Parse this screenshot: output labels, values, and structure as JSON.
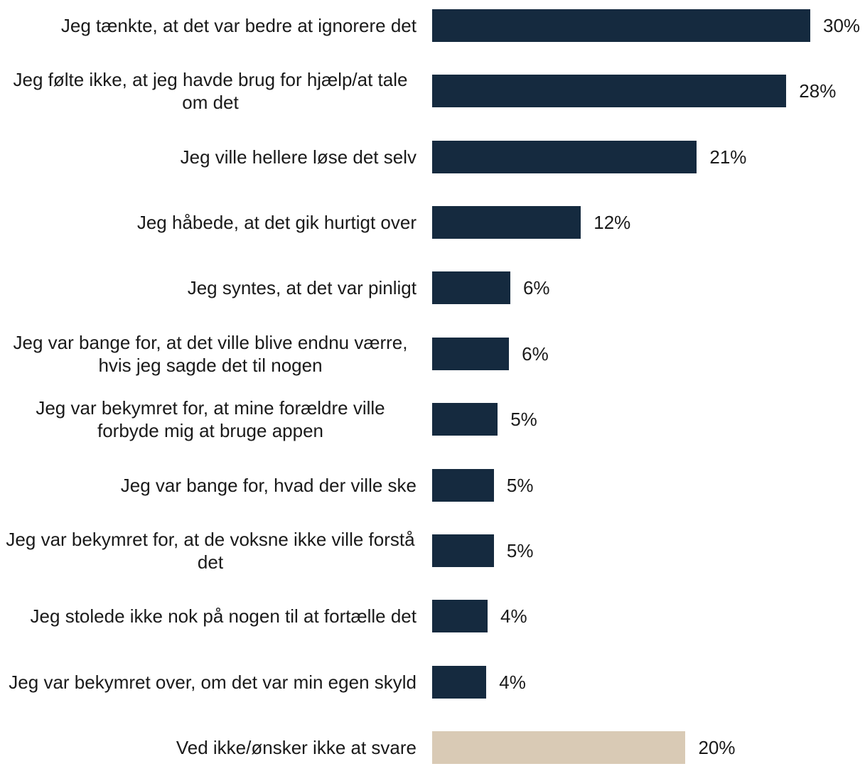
{
  "chart_data": {
    "type": "barh",
    "categories": [
      "Jeg tænkte, at det var bedre at ignorere det",
      "Jeg følte ikke, at jeg havde brug for hjælp/at tale om det",
      "Jeg ville hellere løse det selv",
      "Jeg håbede, at det gik hurtigt over",
      "Jeg syntes, at det var pinligt",
      "Jeg var bange for, at det ville blive endnu værre, hvis jeg sagde det til nogen",
      "Jeg var bekymret for, at mine forældre ville forbyde mig at bruge appen",
      "Jeg var bange for, hvad der ville ske",
      "Jeg var bekymret for, at de voksne ikke ville forstå det",
      "Jeg stolede ikke nok på nogen til at fortælle det",
      "Jeg var bekymret over, om det var min egen skyld",
      "Ved ikke/ønsker ikke at svare"
    ],
    "values": [
      30,
      28.1,
      21,
      11.8,
      6.2,
      6.1,
      5.2,
      4.9,
      4.9,
      4.4,
      4.3,
      20.1
    ],
    "value_labels": [
      "30%",
      "28%",
      "21%",
      "12%",
      "6%",
      "6%",
      "5%",
      "5%",
      "5%",
      "4%",
      "4%",
      "20%"
    ],
    "colors": [
      "#152a3f",
      "#152a3f",
      "#152a3f",
      "#152a3f",
      "#152a3f",
      "#152a3f",
      "#152a3f",
      "#152a3f",
      "#152a3f",
      "#152a3f",
      "#152a3f",
      "#d9cab5"
    ],
    "xlim": [
      0,
      30
    ]
  }
}
